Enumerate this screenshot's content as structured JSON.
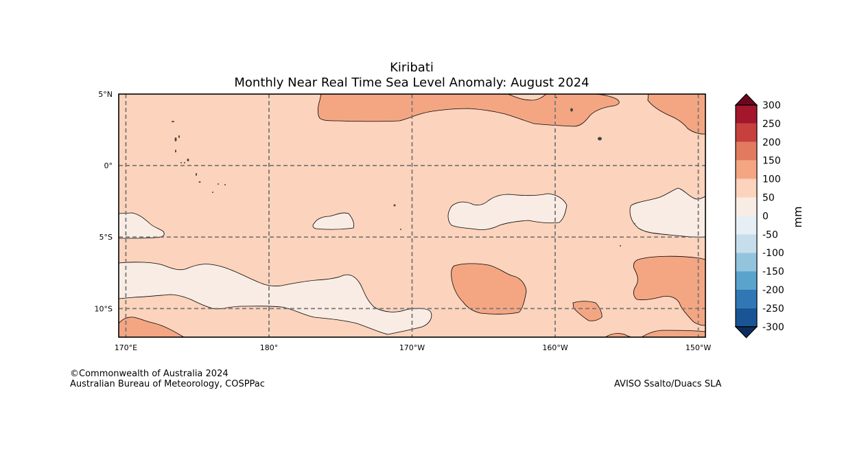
{
  "title": "Kiribati",
  "subtitle": "Monthly Near Real Time Sea Level Anomaly: August 2024",
  "credits": {
    "copyright": "©Commonwealth of Australia 2024",
    "agency": "Australian Bureau of Meteorology, COSPPac",
    "source": "AVISO Ssalto/Duacs SLA"
  },
  "map": {
    "lon_range": [
      169.5,
      210.5
    ],
    "lat_range": [
      -12,
      5
    ],
    "lon_ticks": [
      {
        "value": 170,
        "label": "170°E"
      },
      {
        "value": 180,
        "label": "180°"
      },
      {
        "value": 190,
        "label": "170°W"
      },
      {
        "value": 200,
        "label": "160°W"
      },
      {
        "value": 210,
        "label": "150°W"
      }
    ],
    "lat_ticks": [
      {
        "value": 5,
        "label": "5°N"
      },
      {
        "value": 0,
        "label": "0°"
      },
      {
        "value": -5,
        "label": "5°S"
      },
      {
        "value": -10,
        "label": "10°S"
      }
    ],
    "gridlines": "dashed",
    "background_band": "50 to 100 mm"
  },
  "colorbar": {
    "unit": "mm",
    "levels": [
      "300",
      "250",
      "200",
      "150",
      "100",
      "50",
      "0",
      "-50",
      "-100",
      "-150",
      "-200",
      "-250",
      "-300"
    ],
    "colors_top_to_bottom": [
      "#a3162b",
      "#c6403d",
      "#e17a5e",
      "#f4a683",
      "#fcd3bc",
      "#f8ece4",
      "#e6eff4",
      "#c6deec",
      "#93c4de",
      "#5aa3cd",
      "#2f78b5",
      "#195594"
    ],
    "over_color": "#6b0820",
    "under_color": "#0c2e5c"
  },
  "colors": {
    "band_50_100": "#fcd3bc",
    "band_0_50": "#f8ece4",
    "band_100_150": "#f4a683",
    "grid": "#777777",
    "island": "#444444"
  }
}
